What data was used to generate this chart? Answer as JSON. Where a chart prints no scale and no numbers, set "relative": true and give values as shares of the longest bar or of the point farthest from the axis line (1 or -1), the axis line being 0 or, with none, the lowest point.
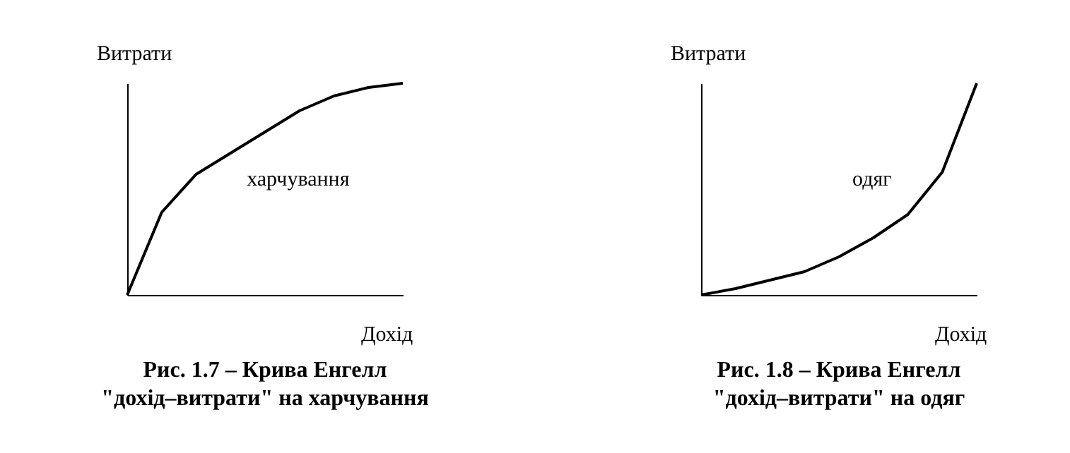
{
  "chart_data": [
    {
      "type": "line",
      "title": "Рис. 1.7 – Крива Енгелл \"дохід–витрати\" на харчування",
      "xlabel": "Дохід",
      "ylabel": "Витрати",
      "categories": [
        null,
        null,
        null,
        null,
        null,
        null,
        null,
        null,
        null
      ],
      "relative": true,
      "series": [
        {
          "color": "#000000",
          "values": [
            0,
            0.39,
            0.57,
            0.67,
            0.77,
            0.87,
            0.94,
            0.98,
            1
          ]
        }
      ],
      "annotations": [
        "харчування"
      ]
    },
    {
      "type": "line",
      "title": "Рис. 1.8 – Крива Енгелл \"дохід–витрати\" на одяг",
      "xlabel": "Дохід",
      "ylabel": "Витрати",
      "categories": [
        null,
        null,
        null,
        null,
        null,
        null,
        null,
        null,
        null
      ],
      "relative": true,
      "series": [
        {
          "color": "#000000",
          "values": [
            0,
            0.03,
            0.07,
            0.11,
            0.18,
            0.27,
            0.38,
            0.58,
            1
          ]
        }
      ],
      "annotations": [
        "одяг"
      ]
    }
  ]
}
